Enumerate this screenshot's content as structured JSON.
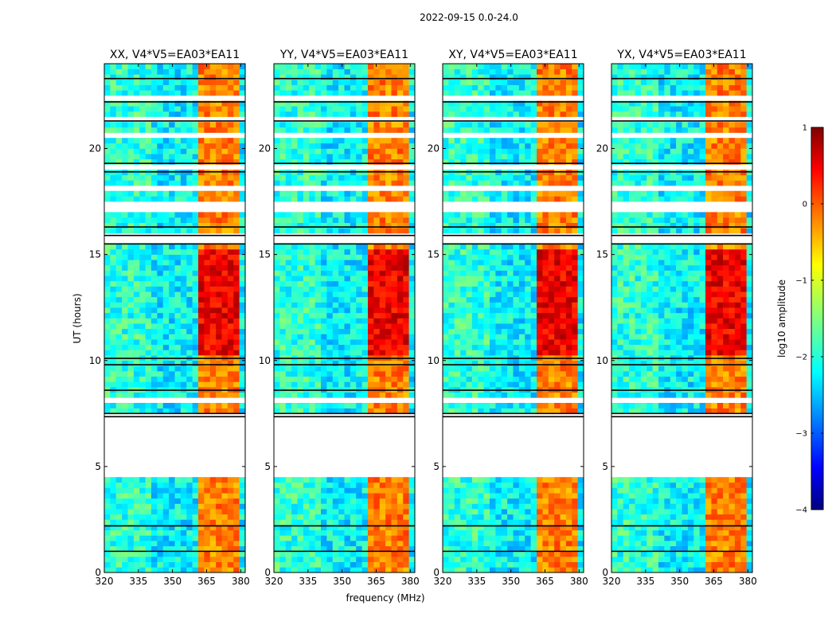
{
  "figure": {
    "suptitle": "2022-09-15 0.0-24.0",
    "xlabel": "frequency (MHz)",
    "ylabel": "UT (hours)"
  },
  "chart_data": {
    "type": "heatmap",
    "description_unit": "log10 amplitude of visibility vs frequency and time",
    "xlim": [
      320,
      382
    ],
    "ylim": [
      0,
      24
    ],
    "xticks": [
      320,
      335,
      350,
      365,
      380
    ],
    "yticks": [
      0,
      5,
      10,
      15,
      20
    ],
    "panels": [
      {
        "title": "XX, V4*V5=EA03*EA11",
        "pol": "XX"
      },
      {
        "title": "YY, V4*V5=EA03*EA11",
        "pol": "YY"
      },
      {
        "title": "XY, V4*V5=EA03*EA11",
        "pol": "XY"
      },
      {
        "title": "YX, V4*V5=EA03*EA11",
        "pol": "YX"
      }
    ],
    "rfi_channels_mhz": [
      [
        360.5,
        364.8
      ],
      [
        364.8,
        368.8
      ],
      [
        368.8,
        372.8
      ],
      [
        372.8,
        377.0
      ],
      [
        377.0,
        380.0
      ]
    ],
    "flagged_time_ranges_hours": [
      [
        4.4,
        7.5
      ],
      [
        21.2,
        21.6
      ],
      [
        22.2,
        22.4
      ],
      [
        15.6,
        16.0
      ],
      [
        19.0,
        19.3
      ],
      [
        20.5,
        20.8
      ],
      [
        17.0,
        17.4
      ],
      [
        18.0,
        18.2
      ],
      [
        8.0,
        8.2
      ],
      [
        8.9,
        9.1
      ]
    ],
    "black_time_lines_hours": [
      21.3,
      22.2,
      23.3,
      19.3,
      18.9,
      16.3,
      15.9,
      15.5,
      10.1,
      9.8,
      8.6,
      7.5,
      7.35,
      2.2,
      1.0
    ],
    "colorbar": {
      "label": "log10 amplitude",
      "min": -4,
      "max": 1,
      "ticks": [
        1,
        0,
        -1,
        -2,
        -3,
        -4
      ],
      "tick_labels": [
        "1",
        "0",
        "−1",
        "−2",
        "−3",
        "−4"
      ],
      "colormap": [
        "#00007f",
        "#0000ff",
        "#007fff",
        "#00ffff",
        "#7fff7f",
        "#ffff00",
        "#ff7f00",
        "#ff0000",
        "#7f0000"
      ]
    }
  }
}
